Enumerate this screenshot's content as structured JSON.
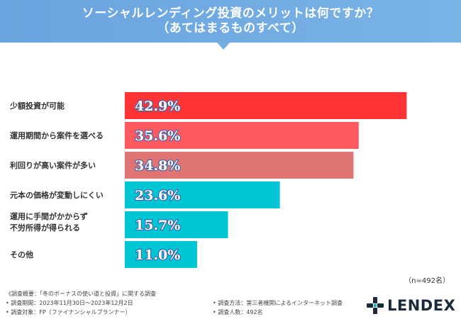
{
  "header": {
    "title_line1": "ソーシャルレンディング投資のメリットは何ですか？",
    "title_line2": "（あてはまるものすべて）"
  },
  "chart_data": {
    "type": "bar",
    "orientation": "horizontal",
    "title": "ソーシャルレンディング投資のメリットは何ですか？（あてはまるものすべて）",
    "unit": "%",
    "categories": [
      "少額投資が可能",
      "運用期間から案件を選べる",
      "利回りが高い案件が多い",
      "元本の価格が変動しにくい",
      "運用に手間がかからず\n不労所得が得られる",
      "その他"
    ],
    "values": [
      42.9,
      35.6,
      34.8,
      23.6,
      15.7,
      11.0
    ],
    "value_labels": [
      "42.9%",
      "35.6%",
      "34.8%",
      "23.6%",
      "15.7%",
      "11.0%"
    ],
    "colors": [
      "#ff3434",
      "#ff5a5f",
      "#e07472",
      "#00c5d4",
      "#00c5d4",
      "#00c5d4"
    ],
    "xlim": [
      0,
      43.5
    ]
  },
  "sample_note": "（n=492名）",
  "footer": {
    "overview": "《調査概要：「冬のボーナスの使い道と投資」に関する調査",
    "period": "• 調査期間：2023年11月30日〜2023年12月2日",
    "target": "• 調査対象：FP（ファイナンシャルプランナー）",
    "method": "• 調査方法：第三者機関によるインターネット調査",
    "count": "• 調査人数：492名"
  },
  "logo": {
    "text": "LENDEX",
    "icon": "lendex-mark-icon",
    "color": "#1a2a3a"
  }
}
